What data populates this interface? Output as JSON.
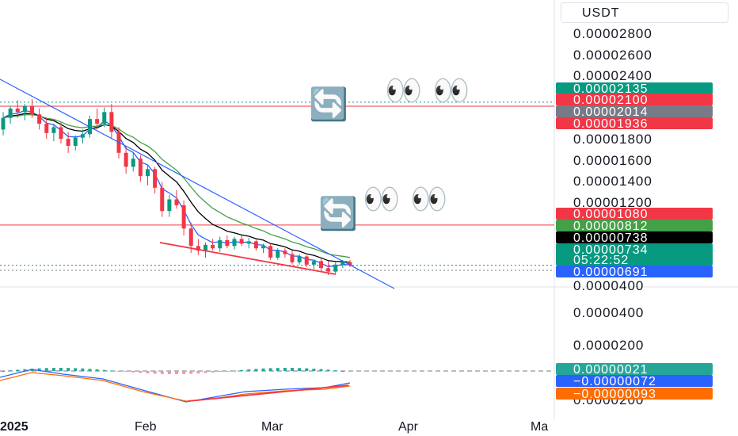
{
  "currency": "USDT",
  "chart_data": {
    "type": "candlestick",
    "price_axis_labels": [
      "0.00002800",
      "0.00002600",
      "0.00002400",
      "0.00001800",
      "0.00001600",
      "0.00001400",
      "0.00001200",
      "0.0000400",
      "0.0000400",
      "0.0000200",
      "0.0000200"
    ],
    "price_badges": [
      {
        "value": "0.00002135",
        "color": "#089981"
      },
      {
        "value": "0.00002100",
        "color": "#f23645"
      },
      {
        "value": "0.00002014",
        "color": "#787b86"
      },
      {
        "value": "0.00001936",
        "color": "#f23645"
      },
      {
        "value": "0.00001080",
        "color": "#f23645"
      },
      {
        "value": "0.00000812",
        "color": "#43a047"
      },
      {
        "value": "0.00000738",
        "color": "#000000"
      },
      {
        "value": "0.00000734",
        "color": "#089981"
      },
      {
        "value": "05:22:52",
        "color": "#089981"
      },
      {
        "value": "0.00000691",
        "color": "#2962ff"
      }
    ],
    "indicator_badges": [
      {
        "value": "0.00000021",
        "color": "#26a69a"
      },
      {
        "value": "−0.00000072",
        "color": "#2962ff"
      },
      {
        "value": "−0.00000093",
        "color": "#ff6d00"
      }
    ],
    "time_labels": [
      "2025",
      "Feb",
      "Mar",
      "Apr",
      "Ma"
    ],
    "horizontal_levels": [
      {
        "price": 2.135e-05,
        "style": "dotted",
        "color": "#089981"
      },
      {
        "price": 2.1e-05,
        "style": "solid",
        "color": "#f23645"
      },
      {
        "price": 1.08e-05,
        "style": "solid",
        "color": "#f23645"
      },
      {
        "price": 7.34e-06,
        "style": "dotted",
        "color": "#089981"
      },
      {
        "price": 6.91e-06,
        "style": "dotted",
        "color": "#787b86"
      }
    ],
    "candles": [
      [
        1.9e-05,
        2.05e-05,
        1.85e-05,
        2e-05
      ],
      [
        2e-05,
        2.1e-05,
        1.95e-05,
        2.08e-05
      ],
      [
        2.08e-05,
        2.15e-05,
        2e-05,
        2.05e-05
      ],
      [
        2.05e-05,
        2.12e-05,
        1.98e-05,
        2.1e-05
      ],
      [
        2.1e-05,
        2.16e-05,
        2e-05,
        2.03e-05
      ],
      [
        2.03e-05,
        2.08e-05,
        1.9e-05,
        1.95e-05
      ],
      [
        1.95e-05,
        2e-05,
        1.82e-05,
        1.87e-05
      ],
      [
        1.87e-05,
        1.95e-05,
        1.8e-05,
        1.92e-05
      ],
      [
        1.92e-05,
        1.96e-05,
        1.78e-05,
        1.82e-05
      ],
      [
        1.82e-05,
        1.88e-05,
        1.7e-05,
        1.76e-05
      ],
      [
        1.76e-05,
        1.85e-05,
        1.72e-05,
        1.83e-05
      ],
      [
        1.83e-05,
        1.9e-05,
        1.78e-05,
        1.86e-05
      ],
      [
        1.86e-05,
        2.02e-05,
        1.83e-05,
        1.99e-05
      ],
      [
        1.99e-05,
        2.08e-05,
        1.9e-05,
        1.95e-05
      ],
      [
        1.95e-05,
        2.09e-05,
        1.92e-05,
        2.05e-05
      ],
      [
        2.05e-05,
        2.12e-05,
        1.82e-05,
        1.88e-05
      ],
      [
        1.88e-05,
        1.92e-05,
        1.65e-05,
        1.7e-05
      ],
      [
        1.7e-05,
        1.76e-05,
        1.52e-05,
        1.58e-05
      ],
      [
        1.58e-05,
        1.7e-05,
        1.54e-05,
        1.65e-05
      ],
      [
        1.65e-05,
        1.68e-05,
        1.45e-05,
        1.5e-05
      ],
      [
        1.5e-05,
        1.6e-05,
        1.42e-05,
        1.56e-05
      ],
      [
        1.56e-05,
        1.58e-05,
        1.35e-05,
        1.4e-05
      ],
      [
        1.4e-05,
        1.45e-05,
        1.15e-05,
        1.2e-05
      ],
      [
        1.2e-05,
        1.34e-05,
        1.15e-05,
        1.3e-05
      ],
      [
        1.3e-05,
        1.38e-05,
        1.22e-05,
        1.25e-05
      ],
      [
        1.25e-05,
        1.29e-05,
        9.9e-06,
        1.05e-05
      ],
      [
        1.05e-05,
        1.1e-05,
        8.4e-06,
        9e-06
      ],
      [
        9e-06,
        9.6e-06,
        8.2e-06,
        8.6e-06
      ],
      [
        8.6e-06,
        9.3e-06,
        8e-06,
        9.1e-06
      ],
      [
        9.1e-06,
        9.6e-06,
        8.6e-06,
        8.8e-06
      ],
      [
        8.8e-06,
        9.8e-06,
        8.5e-06,
        9.5e-06
      ],
      [
        9.5e-06,
        9.9e-06,
        8.8e-06,
        9e-06
      ],
      [
        9e-06,
        9.8e-06,
        8.7e-06,
        9.6e-06
      ],
      [
        9.6e-06,
        9.9e-06,
        9e-06,
        9.2e-06
      ],
      [
        9.2e-06,
        9.7e-06,
        8.8e-06,
        9.4e-06
      ],
      [
        9.4e-06,
        9.6e-06,
        8.6e-06,
        8.8e-06
      ],
      [
        8.8e-06,
        9.2e-06,
        8.4e-06,
        9e-06
      ],
      [
        9e-06,
        9.2e-06,
        7.8e-06,
        8e-06
      ],
      [
        8e-06,
        8.8e-06,
        7.8e-06,
        8.6e-06
      ],
      [
        8.6e-06,
        8.8e-06,
        8e-06,
        8.3e-06
      ],
      [
        8.3e-06,
        8.6e-06,
        7.4e-06,
        7.6e-06
      ],
      [
        7.6e-06,
        8.3e-06,
        7.4e-06,
        8.1e-06
      ],
      [
        8.1e-06,
        8.2e-06,
        7.2e-06,
        7.4e-06
      ],
      [
        7.4e-06,
        7.8e-06,
        7e-06,
        7.7e-06
      ],
      [
        7.7e-06,
        7.9e-06,
        6.9e-06,
        7.1e-06
      ],
      [
        7.1e-06,
        7.7e-06,
        6.5e-06,
        6.8e-06
      ],
      [
        6.8e-06,
        7.6e-06,
        6.6e-06,
        7.4e-06
      ],
      [
        7.4e-06,
        7.8e-06,
        7.1e-06,
        7.6e-06
      ],
      [
        7.6e-06,
        7.8e-06,
        7.2e-06,
        7.34e-06
      ]
    ]
  }
}
